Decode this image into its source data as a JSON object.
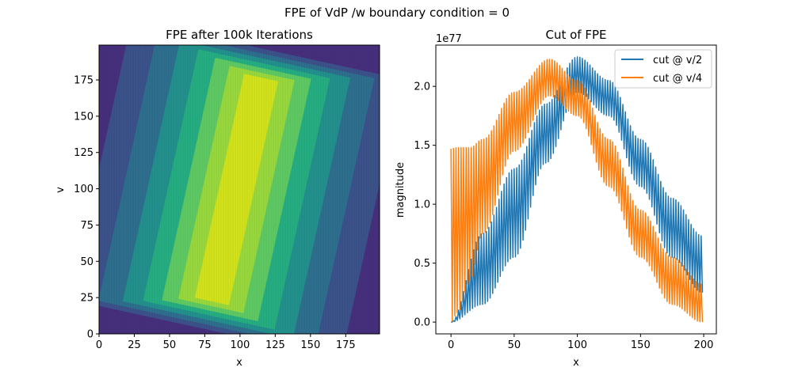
{
  "figure": {
    "suptitle": "FPE of VdP /w boundary condition = 0"
  },
  "chart_data": [
    {
      "type": "heatmap",
      "title": "FPE after 100k Iterations",
      "xlabel": "x",
      "ylabel": "v",
      "xlim": [
        0,
        199
      ],
      "ylim": [
        0,
        199
      ],
      "xticks": [
        0,
        25,
        50,
        75,
        100,
        125,
        150,
        175
      ],
      "yticks": [
        0,
        25,
        50,
        75,
        100,
        125,
        150,
        175
      ],
      "colormap": "viridis",
      "colors": {
        "levels": [
          "#46307e",
          "#3b528b",
          "#2e6f8e",
          "#22908d",
          "#26ad81",
          "#5ec962",
          "#98d83e",
          "#d2e21b"
        ],
        "background": "#440154"
      },
      "description_levels": 8,
      "ridge": {
        "x_start": 75,
        "v_start": 0,
        "x_end": 120,
        "v_end": 199,
        "peak_x_center": 100,
        "peak_v_center": 100
      }
    },
    {
      "type": "line",
      "title": "Cut of FPE",
      "xlabel": "x",
      "ylabel": "magnitude",
      "offset_text": "1e77",
      "xlim": [
        -12,
        210
      ],
      "ylim": [
        -0.1,
        2.35
      ],
      "xticks": [
        0,
        50,
        100,
        150,
        200
      ],
      "yticks": [
        0.0,
        0.5,
        1.0,
        1.5,
        2.0
      ],
      "ytick_labels": [
        "0.0",
        "0.5",
        "1.0",
        "1.5",
        "2.0"
      ],
      "legend": {
        "placement": "top-right"
      },
      "series": [
        {
          "name": "cut @ v/2",
          "color": "#1f77b4",
          "x": [
            0,
            25,
            50,
            75,
            100,
            125,
            150,
            175,
            199
          ],
          "upper": [
            0.0,
            0.75,
            1.3,
            1.85,
            2.25,
            2.05,
            1.55,
            1.05,
            0.73
          ],
          "lower": [
            0.0,
            0.15,
            0.55,
            1.35,
            1.95,
            1.75,
            1.15,
            0.55,
            0.25
          ]
        },
        {
          "name": "cut @ v/4",
          "color": "#ff7f0e",
          "x": [
            0,
            5,
            15,
            25,
            50,
            78,
            100,
            125,
            150,
            175,
            199
          ],
          "upper": [
            1.47,
            1.48,
            1.48,
            1.55,
            1.95,
            2.23,
            2.05,
            1.55,
            0.95,
            0.55,
            0.32
          ],
          "lower": [
            0.0,
            0.08,
            0.35,
            0.75,
            1.45,
            1.92,
            1.75,
            1.15,
            0.55,
            0.15,
            0.0
          ]
        }
      ]
    }
  ]
}
